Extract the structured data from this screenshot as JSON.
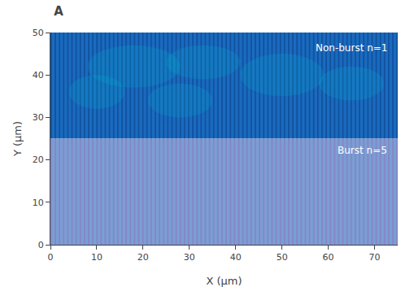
{
  "chart_data": {
    "type": "regions",
    "title": "A",
    "xlabel": "X (μm)",
    "ylabel": "Y (μm)",
    "xlim": [
      0,
      75
    ],
    "ylim": [
      0,
      50
    ],
    "xticks": [
      0,
      10,
      20,
      30,
      40,
      50,
      60,
      70
    ],
    "yticks": [
      0,
      10,
      20,
      30,
      40,
      50
    ],
    "grid": false,
    "regions": [
      {
        "y": [
          25,
          50
        ],
        "color": "#1a6bbf",
        "stripe_color": "#0a3a80",
        "stripe_period": 0.9,
        "stripe_width_frac": 0.35
      },
      {
        "y": [
          0,
          25
        ],
        "color": "#7a9fd4",
        "stripe_color": "#9070b8",
        "stripe_period": 0.9,
        "stripe_width_frac": 0.35
      }
    ],
    "ellipse_color": "#00bcd4",
    "ellipses": [
      {
        "cx": 18,
        "cy": 42,
        "rx": 10,
        "ry": 5
      },
      {
        "cx": 33,
        "cy": 43,
        "rx": 8,
        "ry": 4
      },
      {
        "cx": 50,
        "cy": 40,
        "rx": 9,
        "ry": 5
      },
      {
        "cx": 28,
        "cy": 34,
        "rx": 7,
        "ry": 4
      },
      {
        "cx": 10,
        "cy": 36,
        "rx": 6,
        "ry": 4
      },
      {
        "cx": 65,
        "cy": 38,
        "rx": 7,
        "ry": 4
      }
    ],
    "annotations": [
      {
        "text": "Non-burst n=1",
        "x": 73,
        "y": 48
      },
      {
        "text": "Burst n=5",
        "x": 73,
        "y": 24
      }
    ]
  }
}
